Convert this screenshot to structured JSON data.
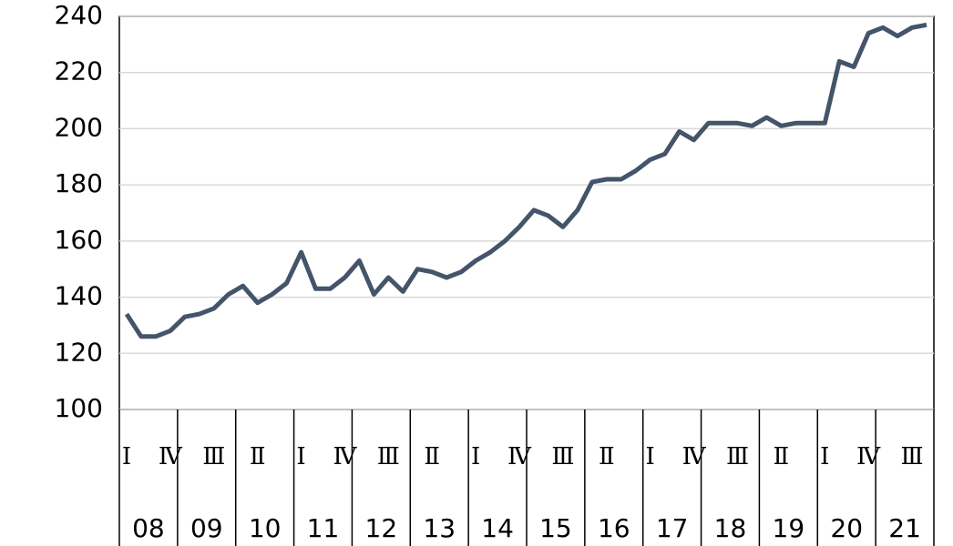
{
  "chart_data": {
    "type": "line",
    "categories": [
      "Ⅰ",
      null,
      null,
      "Ⅳ",
      null,
      null,
      "Ⅲ",
      null,
      null,
      "Ⅱ",
      null,
      null,
      "Ⅰ",
      null,
      null,
      "Ⅳ",
      null,
      null,
      "Ⅲ",
      null,
      null,
      "Ⅱ",
      null,
      null,
      "Ⅰ",
      null,
      null,
      "Ⅳ",
      null,
      null,
      "Ⅲ",
      null,
      null,
      "Ⅱ",
      null,
      null,
      "Ⅰ",
      null,
      null,
      "Ⅳ",
      null,
      null,
      "Ⅲ",
      null,
      null,
      "Ⅱ",
      null,
      null,
      "Ⅰ",
      null,
      null,
      "Ⅳ",
      null,
      null,
      "Ⅲ",
      null
    ],
    "category_groups": [
      "08",
      "09",
      "10",
      "11",
      "12",
      "13",
      "14",
      "15",
      "16",
      "17",
      "18",
      "19",
      "20",
      "21"
    ],
    "series": [
      {
        "color": "#44546a",
        "values": [
          134,
          126,
          126,
          128,
          133,
          134,
          136,
          141,
          144,
          138,
          141,
          145,
          156,
          143,
          143,
          147,
          153,
          141,
          147,
          142,
          150,
          149,
          147,
          149,
          153,
          156,
          160,
          165,
          171,
          169,
          165,
          171,
          181,
          182,
          182,
          185,
          189,
          191,
          199,
          196,
          202,
          202,
          202,
          201,
          204,
          201,
          202,
          202,
          202,
          224,
          222,
          234,
          236,
          233,
          236,
          237
        ]
      }
    ],
    "ylim": [
      100,
      240
    ],
    "yticks": [
      100,
      120,
      140,
      160,
      180,
      200,
      220,
      240
    ],
    "grid": true
  }
}
